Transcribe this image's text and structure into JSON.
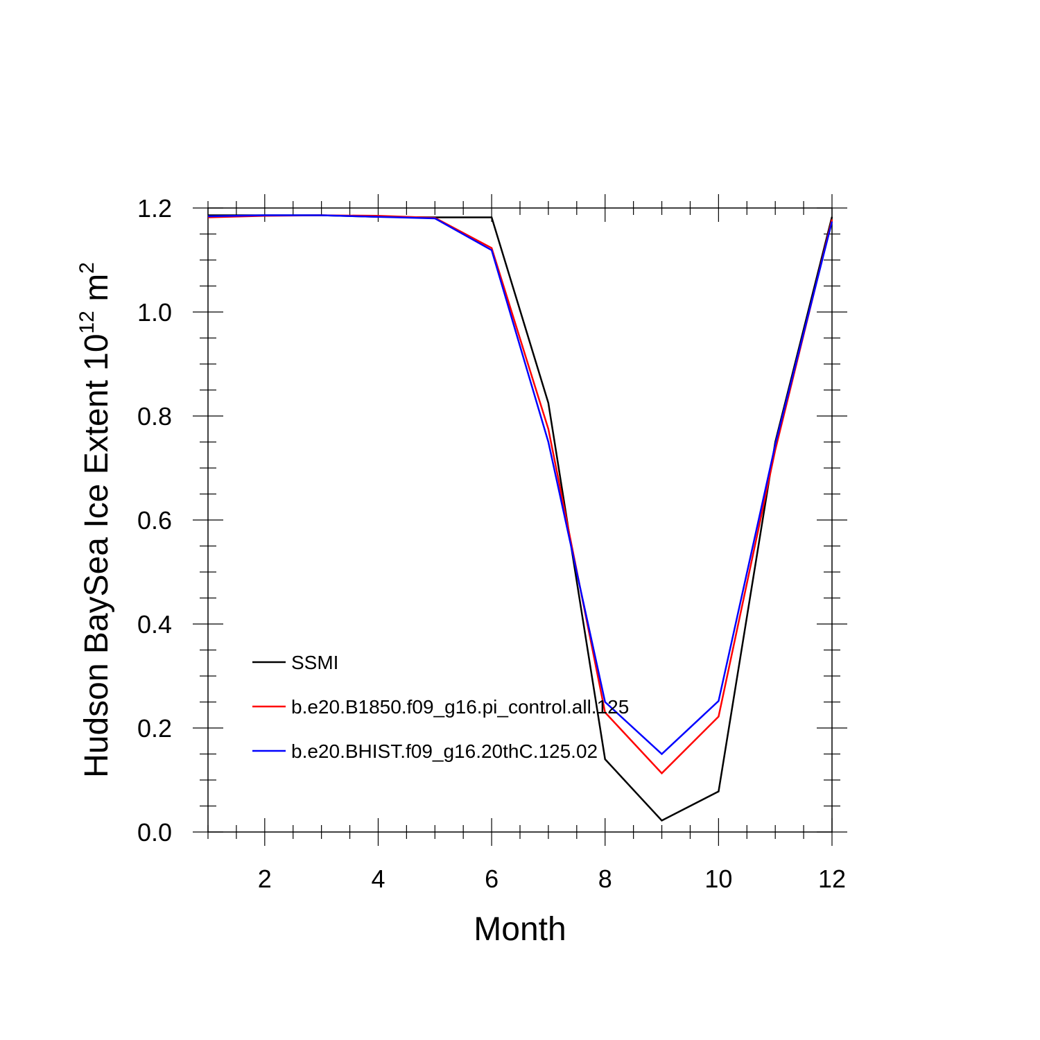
{
  "chart_data": {
    "type": "line",
    "title": "",
    "xlabel": "Month",
    "ylabel": {
      "main": "Hudson BaySea Ice Extent 10",
      "superscript1": "12",
      "unit": " m",
      "superscript2": "2"
    },
    "xlim": [
      1,
      12
    ],
    "ylim": [
      0.0,
      1.2
    ],
    "xticks": [
      2,
      4,
      6,
      8,
      10,
      12
    ],
    "yticks": [
      0.0,
      0.2,
      0.4,
      0.6,
      0.8,
      1.0,
      1.2
    ],
    "ytick_labels": [
      "0.0",
      "0.2",
      "0.4",
      "0.6",
      "0.8",
      "1.0",
      "1.2"
    ],
    "grid": false,
    "legend_position": "bottom-left",
    "x": [
      1,
      2,
      3,
      4,
      5,
      6,
      7,
      8,
      9,
      10,
      11,
      12
    ],
    "series": [
      {
        "name": "SSMI",
        "color": "#000000",
        "values": [
          1.186,
          1.186,
          1.186,
          1.183,
          1.182,
          1.182,
          0.825,
          0.14,
          0.022,
          0.078,
          0.75,
          1.183
        ]
      },
      {
        "name": "b.e20.B1850.f09_g16.pi_control.all.125",
        "color": "#ff0000",
        "values": [
          1.182,
          1.185,
          1.186,
          1.185,
          1.181,
          1.123,
          0.775,
          0.23,
          0.113,
          0.222,
          0.735,
          1.178
        ]
      },
      {
        "name": "b.e20.BHIST.f09_g16.20thC.125.02",
        "color": "#0000ff",
        "values": [
          1.184,
          1.186,
          1.186,
          1.183,
          1.18,
          1.119,
          0.75,
          0.25,
          0.15,
          0.252,
          0.745,
          1.174
        ]
      }
    ]
  }
}
